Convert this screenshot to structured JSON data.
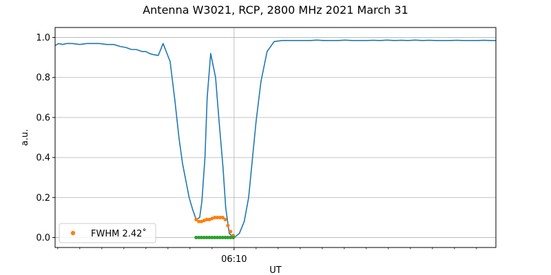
{
  "chart_data": {
    "type": "scatter",
    "title": "Antenna W3021, RCP, 2800 MHz 2021 March 31",
    "xlabel": "UT",
    "ylabel": "a.u.",
    "x_unit": "minutes UT",
    "xlim": [
      365.94,
      375.94
    ],
    "ylim": [
      -0.05,
      1.05
    ],
    "xticks": [
      {
        "value": 370.0,
        "label": "06:10"
      }
    ],
    "minor_xticks": [
      366.0,
      366.5,
      367.0,
      367.5,
      368.0,
      368.5,
      369.0,
      369.5,
      370.5,
      371.0,
      371.5,
      372.0,
      372.5,
      373.0,
      373.5,
      374.0,
      374.5,
      375.0,
      375.5
    ],
    "yticks": [
      0.0,
      0.2,
      0.4,
      0.6,
      0.8,
      1.0
    ],
    "ytick_labels": [
      "0.0",
      "0.2",
      "0.4",
      "0.6",
      "0.8",
      "1.0"
    ],
    "grid": true,
    "legend_position": "lower-left",
    "legend": [
      {
        "label": "FWHM 2.42$^\\circ$",
        "display": "FWHM 2.42˚"
      }
    ],
    "colors": {
      "line": "#1f77b4",
      "orange": "#ff7f0e",
      "green": "#2ca02c"
    },
    "series": [
      {
        "kind": "line",
        "color": "#1f77b4",
        "x": [
          365.94,
          366.02,
          366.11,
          366.2,
          366.33,
          366.5,
          366.66,
          366.8,
          366.95,
          367.11,
          367.27,
          367.42,
          367.55,
          367.67,
          367.78,
          367.91,
          368.0,
          368.08,
          368.16,
          368.28,
          368.39,
          368.55,
          368.66,
          368.75,
          368.83,
          368.91,
          368.98,
          369.06,
          369.14,
          369.22,
          369.27,
          369.34,
          369.39,
          369.47,
          369.58,
          369.66,
          369.75,
          369.81,
          369.89,
          370.0,
          370.12,
          370.23,
          370.33,
          370.41,
          370.5,
          370.61,
          370.75,
          370.91,
          371.09,
          371.25,
          371.41,
          371.56,
          371.72,
          371.88,
          372.03,
          372.19,
          372.36,
          372.52,
          372.67,
          372.84,
          373.0,
          373.16,
          373.31,
          373.47,
          373.64,
          373.8,
          373.95,
          374.11,
          374.27,
          374.42,
          374.58,
          374.73,
          374.89,
          375.05,
          375.2,
          375.36,
          375.52,
          375.67,
          375.83,
          375.94
        ],
        "y": [
          0.96,
          0.97,
          0.965,
          0.97,
          0.97,
          0.965,
          0.97,
          0.97,
          0.97,
          0.965,
          0.965,
          0.955,
          0.95,
          0.94,
          0.94,
          0.93,
          0.93,
          0.92,
          0.915,
          0.91,
          0.97,
          0.88,
          0.68,
          0.5,
          0.37,
          0.28,
          0.2,
          0.14,
          0.09,
          0.1,
          0.18,
          0.4,
          0.7,
          0.92,
          0.8,
          0.58,
          0.35,
          0.15,
          0.02,
          0.0,
          0.02,
          0.08,
          0.2,
          0.38,
          0.58,
          0.78,
          0.93,
          0.98,
          0.985,
          0.985,
          0.985,
          0.985,
          0.985,
          0.987,
          0.985,
          0.985,
          0.985,
          0.987,
          0.985,
          0.985,
          0.985,
          0.986,
          0.985,
          0.987,
          0.985,
          0.986,
          0.985,
          0.987,
          0.985,
          0.986,
          0.985,
          0.985,
          0.985,
          0.986,
          0.985,
          0.985,
          0.985,
          0.986,
          0.985,
          0.985
        ]
      },
      {
        "kind": "scatter",
        "name": "FWHM 2.42$^\\circ$",
        "color": "#ff7f0e",
        "x": [
          369.14,
          369.2,
          369.26,
          369.32,
          369.38,
          369.44,
          369.5,
          369.56,
          369.62,
          369.68,
          369.74,
          369.8,
          369.86,
          369.92,
          369.98
        ],
        "y": [
          0.09,
          0.08,
          0.08,
          0.085,
          0.09,
          0.09,
          0.095,
          0.1,
          0.1,
          0.1,
          0.1,
          0.09,
          0.06,
          0.03,
          0.01
        ]
      },
      {
        "kind": "scatter",
        "color": "#2ca02c",
        "x": [
          369.14,
          369.2,
          369.26,
          369.32,
          369.38,
          369.44,
          369.5,
          369.56,
          369.62,
          369.68,
          369.74,
          369.8,
          369.86,
          369.92,
          369.98
        ],
        "y": [
          0.0,
          0.0,
          0.0,
          0.0,
          0.0,
          0.0,
          0.0,
          0.0,
          0.0,
          0.0,
          0.0,
          0.0,
          0.0,
          0.0,
          0.0
        ]
      }
    ]
  }
}
